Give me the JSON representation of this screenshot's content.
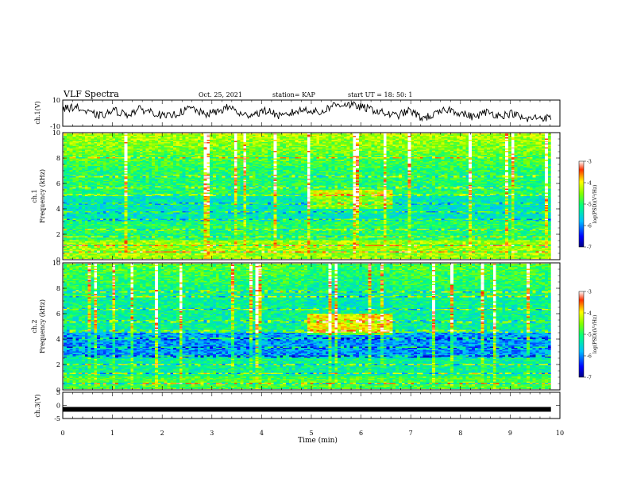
{
  "header": {
    "title": "VLF Spectra",
    "date": "Oct. 25, 2021",
    "station": "station= KAP",
    "start_time": "start  UT =   18: 50: 1"
  },
  "chart_data": [
    {
      "type": "line",
      "panel": "ch1-waveform",
      "ylabel": "ch.1(V)",
      "ylim": [
        -10,
        10
      ],
      "y_ticks": [
        "10",
        "-10"
      ],
      "xlim": [
        0,
        10
      ],
      "description_values_in_volts_approx": [
        3,
        5,
        0,
        -2,
        2,
        -1,
        3,
        1,
        -3,
        0,
        4,
        -1,
        1,
        5,
        -2,
        0,
        2,
        -3,
        1,
        3,
        0,
        6,
        7,
        5,
        3,
        0,
        -2,
        2,
        -4,
        -1,
        3,
        0,
        -3,
        1,
        -2,
        0,
        -5,
        -3,
        -4
      ]
    },
    {
      "type": "heatmap",
      "panel": "ch1-spectrogram",
      "ylabel_top": "ch.1",
      "ylabel": "Frequency (kHz)",
      "ylim": [
        0,
        10
      ],
      "y_ticks": [
        "0",
        "2",
        "4",
        "6",
        "8",
        "10"
      ],
      "xlim": [
        0,
        10
      ],
      "colorbar": {
        "label": "log(PSD)(V²/Hz)",
        "range": [
          -7,
          -3
        ],
        "ticks": [
          "-3",
          "-4",
          "-5",
          "-6",
          "-7"
        ]
      },
      "segment_break_minutes": [
        5.0,
        6.75
      ]
    },
    {
      "type": "heatmap",
      "panel": "ch2-spectrogram",
      "ylabel_top": "ch.2",
      "ylabel": "Frequency (kHz)",
      "ylim": [
        0,
        10
      ],
      "y_ticks": [
        "0",
        "2",
        "4",
        "6",
        "8",
        "10"
      ],
      "xlim": [
        0,
        10
      ],
      "colorbar": {
        "label": "log(PSD)(V²/Hz)",
        "range": [
          -7,
          -3
        ],
        "ticks": [
          "-3",
          "-4",
          "-5",
          "-6",
          "-7"
        ]
      },
      "segment_break_minutes": [
        5.0,
        6.75
      ]
    },
    {
      "type": "line",
      "panel": "ch3-waveform",
      "ylabel": "ch.3(V)",
      "ylim": [
        -5,
        5
      ],
      "y_ticks": [
        "5",
        "0",
        "-5"
      ],
      "xlim": [
        0,
        10
      ],
      "x_ticks": [
        "0",
        "1",
        "2",
        "3",
        "4",
        "5",
        "6",
        "7",
        "8",
        "9",
        "10"
      ],
      "xlabel": "Time (min)",
      "values_approx": [
        -1.5,
        -1.5
      ]
    }
  ],
  "colors": {
    "line": "#000000",
    "colormap": [
      "#00007f",
      "#0000ff",
      "#00ffff",
      "#00ff00",
      "#ffff00",
      "#ff0000",
      "#ffffff"
    ]
  }
}
